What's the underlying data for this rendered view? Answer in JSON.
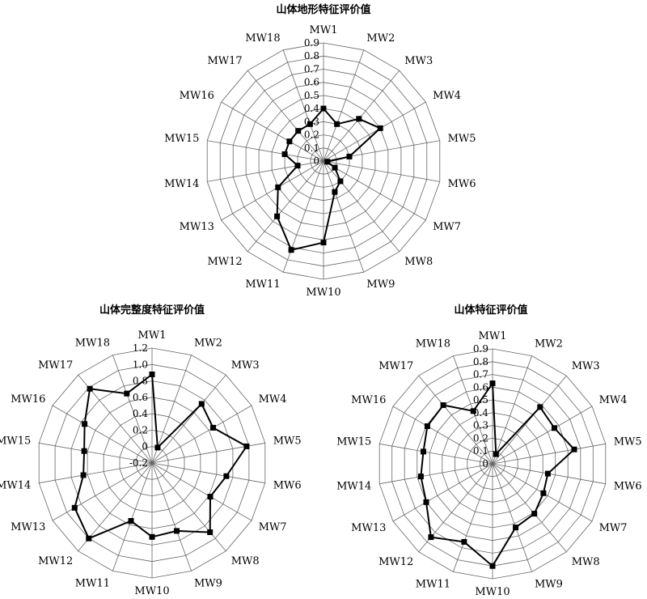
{
  "chart_data": [
    {
      "type": "radar",
      "title": "山体地形特征评价值",
      "categories": [
        "MW1",
        "MW2",
        "MW3",
        "MW4",
        "MW5",
        "MW6",
        "MW7",
        "MW8",
        "MW9",
        "MW10",
        "MW11",
        "MW12",
        "MW13",
        "MW14",
        "MW15",
        "MW16",
        "MW17",
        "MW18"
      ],
      "rticks": [
        "0",
        "0.1",
        "0.2",
        "0.3",
        "0.4",
        "0.5",
        "0.6",
        "0.7",
        "0.8",
        "0.9"
      ],
      "rlim": [
        0,
        0.9
      ],
      "grid": true,
      "values": [
        0.4,
        0.3,
        0.42,
        0.5,
        0.2,
        0.03,
        0.1,
        0.2,
        0.25,
        0.62,
        0.72,
        0.55,
        0.4,
        0.2,
        0.3,
        0.3,
        0.3,
        0.3
      ]
    },
    {
      "type": "radar",
      "title": "山体完整度特征评价值",
      "categories": [
        "MW1",
        "MW2",
        "MW3",
        "MW4",
        "MW5",
        "MW6",
        "MW7",
        "MW8",
        "MW9",
        "MW10",
        "MW11",
        "MW12",
        "MW13",
        "MW14",
        "MW15",
        "MW16",
        "MW17",
        "MW18"
      ],
      "rticks": [
        "-0.2",
        "0",
        "0.2",
        "0.4",
        "0.6",
        "0.8",
        "1.0",
        "1.2"
      ],
      "rlim": [
        -0.2,
        1.2
      ],
      "grid": true,
      "values": [
        0.88,
        0.0,
        0.74,
        0.66,
        0.97,
        0.72,
        0.62,
        0.9,
        0.68,
        0.7,
        0.55,
        1.0,
        0.89,
        0.65,
        0.64,
        0.75,
        0.98,
        0.7
      ]
    },
    {
      "type": "radar",
      "title": "山体特征评价值",
      "categories": [
        "MW1",
        "MW2",
        "MW3",
        "MW4",
        "MW5",
        "MW6",
        "MW7",
        "MW8",
        "MW9",
        "MW10",
        "MW11",
        "MW12",
        "MW13",
        "MW14",
        "MW15",
        "MW16",
        "MW17",
        "MW18"
      ],
      "rticks": [
        "0",
        "0.1",
        "0.2",
        "0.3",
        "0.4",
        "0.5",
        "0.6",
        "0.7",
        "0.8",
        "0.9"
      ],
      "rlim": [
        0,
        0.9
      ],
      "grid": true,
      "values": [
        0.63,
        0.08,
        0.58,
        0.56,
        0.65,
        0.44,
        0.46,
        0.51,
        0.53,
        0.8,
        0.65,
        0.75,
        0.6,
        0.57,
        0.55,
        0.59,
        0.6,
        0.44
      ]
    }
  ]
}
